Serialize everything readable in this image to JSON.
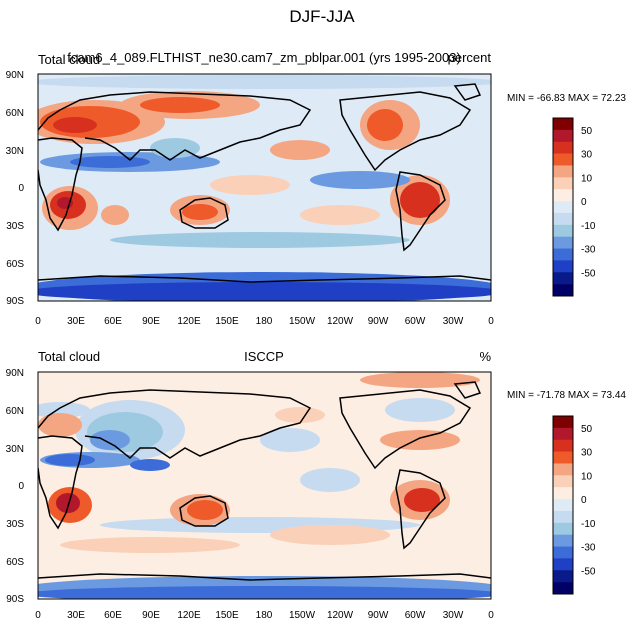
{
  "figure": {
    "title": "DJF-JJA"
  },
  "panels": [
    {
      "id": "model",
      "left_label": "Total cloud",
      "center_label": "fcam6_4_089.FLTHIST_ne30.cam7_zm_pblpar.001 (yrs 1995-2003)",
      "right_label": "percent",
      "minmax": "MIN = -66.83 MAX =  72.23"
    },
    {
      "id": "obs",
      "left_label": "Total cloud",
      "center_label": "ISCCP",
      "right_label": "%",
      "minmax": "MIN = -71.78 MAX =  73.44"
    }
  ],
  "axes": {
    "lat_ticks": [
      "90N",
      "60N",
      "30N",
      "0",
      "30S",
      "60S",
      "90S"
    ],
    "lon_ticks": [
      "0",
      "30E",
      "60E",
      "90E",
      "120E",
      "150E",
      "180",
      "150W",
      "120W",
      "90W",
      "60W",
      "30W",
      "0"
    ]
  },
  "colorbar": {
    "colors": [
      "#7f0000",
      "#b2182b",
      "#d7301f",
      "#ef5a2a",
      "#f4a582",
      "#fbd0b9",
      "#fdeee4",
      "#deebf7",
      "#c6dbef",
      "#9ecae1",
      "#6b9ae0",
      "#3b6cd8",
      "#1f3fc4",
      "#0a1a8a",
      "#000066"
    ],
    "labels": [
      "50",
      "30",
      "10",
      "0",
      "-10",
      "-30",
      "-50"
    ]
  },
  "colors": {
    "land_outline": "#000000",
    "warm": "#ef5a2a",
    "cool": "#3b6cd8"
  }
}
